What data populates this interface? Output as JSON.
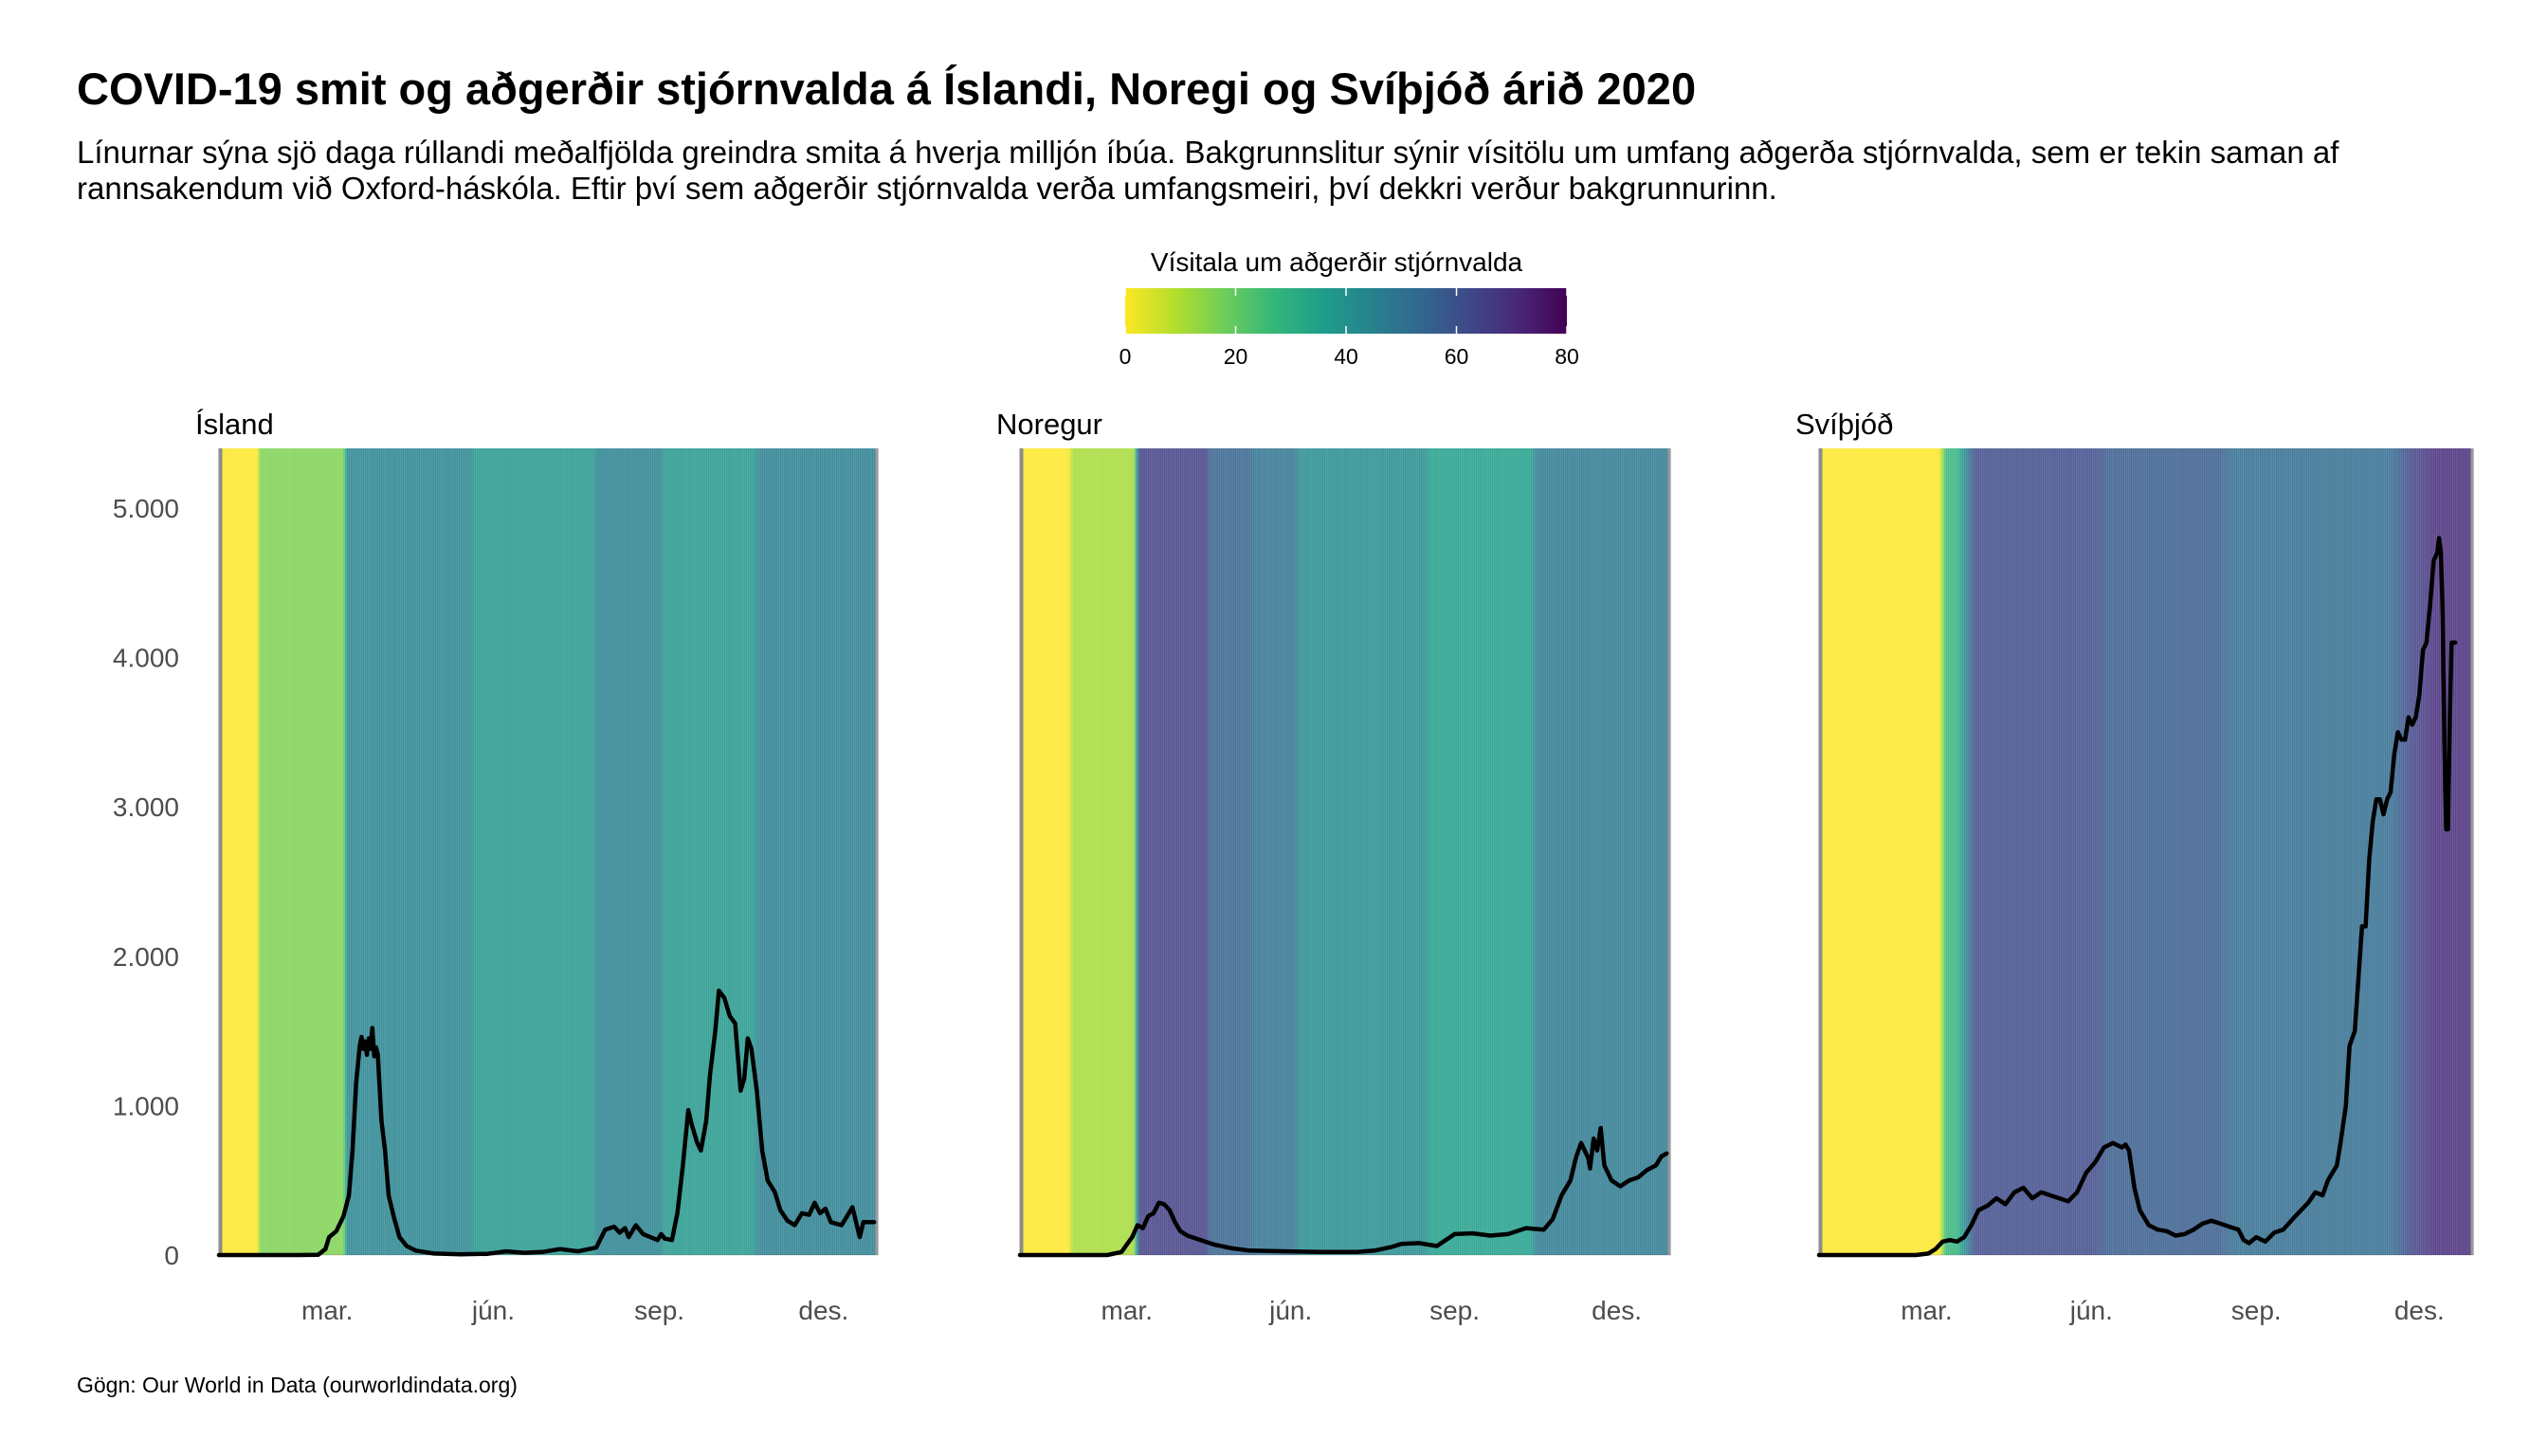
{
  "title": "COVID-19 smit og aðgerðir stjórnvalda á Íslandi, Noregi og Svíþjóð árið 2020",
  "subtitle": "Línurnar sýna sjö daga rúllandi meðalfjölda greindra smita á hverja milljón íbúa. Bakgrunnslitur sýnir vísitölu um umfang aðgerða stjórnvalda, sem er tekin saman af rannsakendum við Oxford-háskóla. Eftir því sem aðgerðir stjórnvalda verða umfangsmeiri, því dekkri verður bakgrunnurinn.",
  "caption": "Gögn: Our World in Data (ourworldindata.org)",
  "chart_data": {
    "type": "line",
    "x_unit": "day of year 2020",
    "xlim": [
      1,
      366
    ],
    "ylim": [
      0,
      5400
    ],
    "y_ticks": [
      {
        "value": 0,
        "label": "0"
      },
      {
        "value": 1000,
        "label": "1.000"
      },
      {
        "value": 2000,
        "label": "2.000"
      },
      {
        "value": 3000,
        "label": "3.000"
      },
      {
        "value": 4000,
        "label": "4.000"
      },
      {
        "value": 5000,
        "label": "5.000"
      }
    ],
    "x_ticks": [
      {
        "value": 61,
        "label": "mar."
      },
      {
        "value": 153,
        "label": "jún."
      },
      {
        "value": 245,
        "label": "sep."
      },
      {
        "value": 336,
        "label": "des."
      }
    ],
    "legend": {
      "title": "Vísitala um aðgerðir stjórnvalda",
      "range": [
        0,
        80
      ],
      "ticks": [
        "0",
        "20",
        "40",
        "60",
        "80"
      ],
      "placement": "top-center",
      "palette": [
        "#fde725",
        "#b5de2b",
        "#6ece58",
        "#35b779",
        "#1f9e89",
        "#26828e",
        "#31688e",
        "#3e4989",
        "#482878",
        "#440154"
      ]
    },
    "line_color": "#000000",
    "panels": [
      {
        "name": "Ísland",
        "stringency": [
          [
            1,
            0
          ],
          [
            22,
            0
          ],
          [
            24,
            16
          ],
          [
            70,
            16
          ],
          [
            72,
            44
          ],
          [
            140,
            44
          ],
          [
            143,
            38
          ],
          [
            208,
            38
          ],
          [
            211,
            45
          ],
          [
            245,
            45
          ],
          [
            248,
            38
          ],
          [
            297,
            38
          ],
          [
            300,
            46
          ],
          [
            366,
            46
          ]
        ],
        "cases": [
          [
            1,
            0
          ],
          [
            45,
            0
          ],
          [
            56,
            2
          ],
          [
            60,
            40
          ],
          [
            62,
            120
          ],
          [
            66,
            160
          ],
          [
            70,
            260
          ],
          [
            73,
            400
          ],
          [
            75,
            700
          ],
          [
            77,
            1150
          ],
          [
            79,
            1400
          ],
          [
            80,
            1460
          ],
          [
            81,
            1380
          ],
          [
            82,
            1430
          ],
          [
            83,
            1340
          ],
          [
            84,
            1450
          ],
          [
            85,
            1380
          ],
          [
            86,
            1520
          ],
          [
            87,
            1330
          ],
          [
            88,
            1390
          ],
          [
            89,
            1340
          ],
          [
            91,
            900
          ],
          [
            93,
            700
          ],
          [
            95,
            400
          ],
          [
            98,
            250
          ],
          [
            101,
            120
          ],
          [
            105,
            60
          ],
          [
            110,
            30
          ],
          [
            120,
            10
          ],
          [
            135,
            5
          ],
          [
            150,
            8
          ],
          [
            160,
            25
          ],
          [
            170,
            15
          ],
          [
            180,
            20
          ],
          [
            190,
            40
          ],
          [
            200,
            25
          ],
          [
            210,
            50
          ],
          [
            215,
            170
          ],
          [
            220,
            190
          ],
          [
            223,
            150
          ],
          [
            226,
            180
          ],
          [
            228,
            120
          ],
          [
            232,
            200
          ],
          [
            236,
            140
          ],
          [
            240,
            120
          ],
          [
            244,
            100
          ],
          [
            246,
            140
          ],
          [
            248,
            110
          ],
          [
            252,
            100
          ],
          [
            255,
            280
          ],
          [
            258,
            600
          ],
          [
            261,
            970
          ],
          [
            263,
            870
          ],
          [
            266,
            750
          ],
          [
            268,
            700
          ],
          [
            271,
            900
          ],
          [
            273,
            1200
          ],
          [
            276,
            1500
          ],
          [
            278,
            1770
          ],
          [
            281,
            1720
          ],
          [
            284,
            1600
          ],
          [
            287,
            1550
          ],
          [
            289,
            1250
          ],
          [
            290,
            1100
          ],
          [
            292,
            1180
          ],
          [
            294,
            1450
          ],
          [
            296,
            1380
          ],
          [
            299,
            1100
          ],
          [
            302,
            700
          ],
          [
            305,
            500
          ],
          [
            309,
            420
          ],
          [
            312,
            300
          ],
          [
            316,
            230
          ],
          [
            320,
            200
          ],
          [
            324,
            280
          ],
          [
            328,
            270
          ],
          [
            331,
            350
          ],
          [
            334,
            280
          ],
          [
            337,
            310
          ],
          [
            340,
            220
          ],
          [
            343,
            210
          ],
          [
            346,
            200
          ],
          [
            349,
            260
          ],
          [
            352,
            320
          ],
          [
            356,
            120
          ],
          [
            358,
            220
          ],
          [
            364,
            220
          ]
        ]
      },
      {
        "name": "Noregur",
        "stringency": [
          [
            1,
            0
          ],
          [
            28,
            0
          ],
          [
            31,
            11
          ],
          [
            65,
            11
          ],
          [
            68,
            65
          ],
          [
            105,
            65
          ],
          [
            108,
            55
          ],
          [
            130,
            55
          ],
          [
            133,
            50
          ],
          [
            155,
            50
          ],
          [
            158,
            42
          ],
          [
            228,
            42
          ],
          [
            231,
            36
          ],
          [
            288,
            36
          ],
          [
            291,
            48
          ],
          [
            366,
            48
          ]
        ],
        "cases": [
          [
            1,
            0
          ],
          [
            50,
            0
          ],
          [
            58,
            20
          ],
          [
            64,
            120
          ],
          [
            67,
            200
          ],
          [
            70,
            180
          ],
          [
            73,
            260
          ],
          [
            76,
            280
          ],
          [
            79,
            350
          ],
          [
            82,
            340
          ],
          [
            85,
            300
          ],
          [
            88,
            220
          ],
          [
            91,
            160
          ],
          [
            95,
            130
          ],
          [
            100,
            110
          ],
          [
            110,
            70
          ],
          [
            120,
            45
          ],
          [
            130,
            30
          ],
          [
            150,
            25
          ],
          [
            170,
            20
          ],
          [
            190,
            20
          ],
          [
            200,
            30
          ],
          [
            210,
            55
          ],
          [
            215,
            75
          ],
          [
            225,
            80
          ],
          [
            235,
            60
          ],
          [
            245,
            140
          ],
          [
            255,
            145
          ],
          [
            265,
            130
          ],
          [
            275,
            140
          ],
          [
            285,
            180
          ],
          [
            295,
            170
          ],
          [
            300,
            240
          ],
          [
            305,
            400
          ],
          [
            310,
            500
          ],
          [
            313,
            650
          ],
          [
            316,
            750
          ],
          [
            320,
            650
          ],
          [
            321,
            580
          ],
          [
            323,
            780
          ],
          [
            325,
            700
          ],
          [
            327,
            850
          ],
          [
            329,
            600
          ],
          [
            333,
            500
          ],
          [
            338,
            460
          ],
          [
            343,
            500
          ],
          [
            348,
            520
          ],
          [
            353,
            570
          ],
          [
            358,
            600
          ],
          [
            361,
            660
          ],
          [
            364,
            680
          ]
        ]
      },
      {
        "name": "Svíþjóð",
        "stringency": [
          [
            1,
            0
          ],
          [
            68,
            0
          ],
          [
            72,
            28
          ],
          [
            78,
            28
          ],
          [
            88,
            62
          ],
          [
            156,
            62
          ],
          [
            162,
            57
          ],
          [
            225,
            57
          ],
          [
            231,
            52
          ],
          [
            320,
            52
          ],
          [
            330,
            62
          ],
          [
            345,
            70
          ],
          [
            366,
            70
          ]
        ],
        "cases": [
          [
            1,
            0
          ],
          [
            55,
            0
          ],
          [
            62,
            10
          ],
          [
            66,
            40
          ],
          [
            70,
            90
          ],
          [
            74,
            100
          ],
          [
            78,
            90
          ],
          [
            82,
            120
          ],
          [
            86,
            200
          ],
          [
            90,
            300
          ],
          [
            95,
            330
          ],
          [
            100,
            380
          ],
          [
            105,
            340
          ],
          [
            110,
            420
          ],
          [
            115,
            450
          ],
          [
            120,
            380
          ],
          [
            125,
            420
          ],
          [
            130,
            400
          ],
          [
            135,
            380
          ],
          [
            140,
            360
          ],
          [
            145,
            420
          ],
          [
            150,
            550
          ],
          [
            155,
            620
          ],
          [
            160,
            720
          ],
          [
            165,
            750
          ],
          [
            170,
            720
          ],
          [
            172,
            740
          ],
          [
            174,
            700
          ],
          [
            177,
            450
          ],
          [
            180,
            300
          ],
          [
            185,
            200
          ],
          [
            190,
            170
          ],
          [
            195,
            160
          ],
          [
            200,
            130
          ],
          [
            205,
            140
          ],
          [
            210,
            170
          ],
          [
            215,
            210
          ],
          [
            220,
            230
          ],
          [
            225,
            210
          ],
          [
            230,
            190
          ],
          [
            235,
            170
          ],
          [
            238,
            100
          ],
          [
            241,
            80
          ],
          [
            245,
            120
          ],
          [
            250,
            90
          ],
          [
            255,
            150
          ],
          [
            260,
            170
          ],
          [
            263,
            210
          ],
          [
            266,
            250
          ],
          [
            270,
            300
          ],
          [
            274,
            350
          ],
          [
            278,
            420
          ],
          [
            282,
            400
          ],
          [
            285,
            500
          ],
          [
            290,
            600
          ],
          [
            292,
            750
          ],
          [
            295,
            1000
          ],
          [
            297,
            1400
          ],
          [
            300,
            1500
          ],
          [
            302,
            1850
          ],
          [
            304,
            2200
          ],
          [
            306,
            2200
          ],
          [
            308,
            2650
          ],
          [
            310,
            2900
          ],
          [
            312,
            3050
          ],
          [
            314,
            3050
          ],
          [
            316,
            2950
          ],
          [
            318,
            3050
          ],
          [
            320,
            3100
          ],
          [
            322,
            3350
          ],
          [
            324,
            3500
          ],
          [
            326,
            3450
          ],
          [
            328,
            3450
          ],
          [
            330,
            3600
          ],
          [
            332,
            3550
          ],
          [
            334,
            3600
          ],
          [
            336,
            3750
          ],
          [
            338,
            4050
          ],
          [
            340,
            4100
          ],
          [
            342,
            4350
          ],
          [
            344,
            4650
          ],
          [
            346,
            4700
          ],
          [
            347,
            4800
          ],
          [
            348,
            4700
          ],
          [
            349,
            4300
          ],
          [
            350,
            3400
          ],
          [
            351,
            2850
          ],
          [
            352,
            2850
          ],
          [
            353,
            3600
          ],
          [
            354,
            4100
          ],
          [
            356,
            4100
          ]
        ]
      }
    ]
  }
}
